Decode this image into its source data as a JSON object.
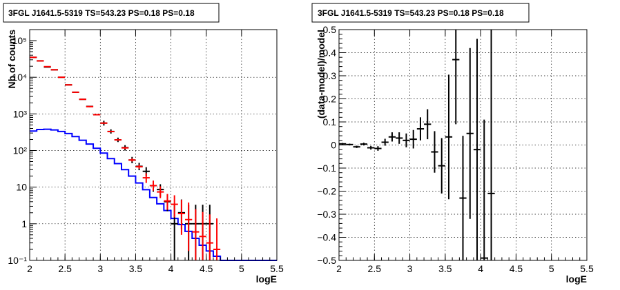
{
  "chart_data": [
    {
      "type": "step-histogram",
      "title": "3FGL J1641.5-5319 TS=543.23 PS=0.18 PS=0.18",
      "xlabel": "logE",
      "ylabel": "Nb of counts",
      "xlim": [
        2,
        5.5
      ],
      "ylim": [
        0.1,
        200000
      ],
      "yscale": "log",
      "grid": true,
      "x_ticks": [
        2,
        2.5,
        3,
        3.5,
        4,
        4.5,
        5,
        5.5
      ],
      "x_tick_labels": [
        "2",
        "2.5",
        "3",
        "3.5",
        "4",
        "4.5",
        "5",
        "5.5"
      ],
      "y_ticks": [
        0.1,
        1,
        10,
        100,
        1000,
        10000,
        100000
      ],
      "y_tick_labels": [
        "10⁻¹",
        "1",
        "10",
        "10²",
        "10³",
        "10⁴",
        "10⁵"
      ],
      "bin_width": 0.1,
      "colors": {
        "data": "#000000",
        "model": "#ff0000",
        "source": "#0000ff"
      },
      "series": [
        {
          "values": [
            {
              "x": 2.05,
              "y": 35000,
              "lo": 0,
              "hi": 0
            },
            {
              "x": 2.15,
              "y": 28000,
              "lo": 0,
              "hi": 0
            },
            {
              "x": 2.25,
              "y": 19000,
              "lo": 0,
              "hi": 0
            },
            {
              "x": 2.35,
              "y": 16000,
              "lo": 0,
              "hi": 0
            },
            {
              "x": 2.45,
              "y": 10000,
              "lo": 0,
              "hi": 0
            },
            {
              "x": 2.55,
              "y": 6200,
              "lo": 0,
              "hi": 0
            },
            {
              "x": 2.65,
              "y": 3900,
              "lo": 0,
              "hi": 0
            },
            {
              "x": 2.75,
              "y": 2500,
              "lo": 0,
              "hi": 0
            },
            {
              "x": 2.85,
              "y": 1600,
              "lo": 0,
              "hi": 0
            },
            {
              "x": 2.95,
              "y": 950,
              "lo": 0,
              "hi": 0
            },
            {
              "x": 3.05,
              "y": 560,
              "lo": 480,
              "hi": 650
            },
            {
              "x": 3.15,
              "y": 330,
              "lo": 290,
              "hi": 380
            },
            {
              "x": 3.25,
              "y": 195,
              "lo": 170,
              "hi": 225
            },
            {
              "x": 3.35,
              "y": 120,
              "lo": 100,
              "hi": 140
            },
            {
              "x": 3.45,
              "y": 55,
              "lo": 45,
              "hi": 67
            },
            {
              "x": 3.55,
              "y": 37,
              "lo": 29,
              "hi": 46
            },
            {
              "x": 3.65,
              "y": 27,
              "lo": 20,
              "hi": 35
            },
            {
              "x": 3.75,
              "y": 11,
              "lo": 7.5,
              "hi": 15
            },
            {
              "x": 3.85,
              "y": 8.6,
              "lo": 5.5,
              "hi": 12
            },
            {
              "x": 3.95,
              "y": 4,
              "lo": 2.2,
              "hi": 6.4
            },
            {
              "x": 4.05,
              "y": 1,
              "lo": 0.1,
              "hi": 3.3
            },
            {
              "x": 4.15,
              "y": 2,
              "lo": 0.7,
              "hi": 4.6
            },
            {
              "x": 4.25,
              "y": 1,
              "lo": 0.1,
              "hi": 3.3
            },
            {
              "x": 4.35,
              "y": 1,
              "lo": 0.1,
              "hi": 3.3
            },
            {
              "x": 4.45,
              "y": 1,
              "lo": 0.1,
              "hi": 3.3
            },
            {
              "x": 4.55,
              "y": 1,
              "lo": 0.1,
              "hi": 3.3
            }
          ]
        },
        {
          "values": [
            {
              "x": 2.05,
              "y": 35000,
              "lo": 34500,
              "hi": 35500
            },
            {
              "x": 2.15,
              "y": 28000,
              "lo": 27600,
              "hi": 28400
            },
            {
              "x": 2.25,
              "y": 19500,
              "lo": 19200,
              "hi": 19800
            },
            {
              "x": 2.35,
              "y": 16000,
              "lo": 15700,
              "hi": 16300
            },
            {
              "x": 2.45,
              "y": 10000,
              "lo": 9800,
              "hi": 10200
            },
            {
              "x": 2.55,
              "y": 6200,
              "lo": 6050,
              "hi": 6350
            },
            {
              "x": 2.65,
              "y": 3900,
              "lo": 3800,
              "hi": 4000
            },
            {
              "x": 2.75,
              "y": 2500,
              "lo": 2420,
              "hi": 2580
            },
            {
              "x": 2.85,
              "y": 1580,
              "lo": 1520,
              "hi": 1640
            },
            {
              "x": 2.95,
              "y": 950,
              "lo": 910,
              "hi": 990
            },
            {
              "x": 3.05,
              "y": 560,
              "lo": 535,
              "hi": 585
            },
            {
              "x": 3.15,
              "y": 330,
              "lo": 315,
              "hi": 345
            },
            {
              "x": 3.25,
              "y": 195,
              "lo": 186,
              "hi": 205
            },
            {
              "x": 3.35,
              "y": 118,
              "lo": 110,
              "hi": 126
            },
            {
              "x": 3.45,
              "y": 55,
              "lo": 50,
              "hi": 61
            },
            {
              "x": 3.55,
              "y": 36,
              "lo": 32,
              "hi": 41
            },
            {
              "x": 3.65,
              "y": 18,
              "lo": 13,
              "hi": 24
            },
            {
              "x": 3.75,
              "y": 11,
              "lo": 8,
              "hi": 15
            },
            {
              "x": 3.85,
              "y": 7.4,
              "lo": 5,
              "hi": 10.5
            },
            {
              "x": 3.95,
              "y": 4.2,
              "lo": 2.4,
              "hi": 6.5
            },
            {
              "x": 4.05,
              "y": 3.4,
              "lo": 1.5,
              "hi": 6
            },
            {
              "x": 4.15,
              "y": 1.9,
              "lo": 0.5,
              "hi": 4.5
            },
            {
              "x": 4.25,
              "y": 1.3,
              "lo": 0.18,
              "hi": 3.8
            },
            {
              "x": 4.35,
              "y": 0.6,
              "lo": 0.1,
              "hi": 2.5
            },
            {
              "x": 4.45,
              "y": 0.45,
              "lo": 0.1,
              "hi": 2.1
            },
            {
              "x": 4.55,
              "y": 0.3,
              "lo": 0.1,
              "hi": 1.8
            },
            {
              "x": 4.65,
              "y": 0.2,
              "lo": 0.1,
              "hi": 1.4
            }
          ]
        },
        {
          "edges": [
            2.0,
            2.1,
            2.2,
            2.3,
            2.4,
            2.5,
            2.6,
            2.7,
            2.8,
            2.9,
            3.0,
            3.1,
            3.2,
            3.3,
            3.4,
            3.5,
            3.6,
            3.7,
            3.8,
            3.9,
            4.0,
            4.1,
            4.2,
            4.3,
            4.4,
            4.5,
            4.6,
            4.7,
            4.8,
            4.9,
            5.0,
            5.1,
            5.2,
            5.3,
            5.4,
            5.5
          ],
          "values": [
            340,
            375,
            380,
            365,
            330,
            290,
            240,
            190,
            150,
            115,
            85,
            60,
            44,
            30,
            20,
            13,
            8.5,
            5.2,
            3.5,
            2.3,
            1.4,
            0.95,
            0.62,
            0.4,
            0.26,
            0.18,
            0.13,
            0.1,
            0.1,
            0.1,
            0.1,
            0.1,
            0.1,
            0.1,
            0.1
          ]
        }
      ]
    },
    {
      "type": "scatter-errorbar",
      "title": "3FGL J1641.5-5319 TS=543.23 PS=0.18 PS=0.18",
      "xlabel": "logE",
      "ylabel": "(data-model)/model",
      "xlim": [
        2,
        5.5
      ],
      "ylim": [
        -0.5,
        0.5
      ],
      "grid": true,
      "x_ticks": [
        2,
        2.5,
        3,
        3.5,
        4,
        4.5,
        5,
        5.5
      ],
      "x_tick_labels": [
        "2",
        "2.5",
        "3",
        "3.5",
        "4",
        "4.5",
        "5",
        "5.5"
      ],
      "y_ticks": [
        -0.5,
        -0.4,
        -0.3,
        -0.2,
        -0.1,
        0,
        0.1,
        0.2,
        0.3,
        0.4,
        0.5
      ],
      "y_tick_labels": [
        "−0.5",
        "−0.4",
        "−0.3",
        "−0.2",
        "−0.1",
        "0",
        "0.1",
        "0.2",
        "0.3",
        "0.4",
        "0.5"
      ],
      "bin_width": 0.1,
      "colors": {
        "points": "#000000"
      },
      "series": [
        {
          "values": [
            {
              "x": 2.05,
              "y": 0.005,
              "err": 0.004
            },
            {
              "x": 2.15,
              "y": 0.002,
              "err": 0.004
            },
            {
              "x": 2.25,
              "y": -0.008,
              "err": 0.005
            },
            {
              "x": 2.35,
              "y": 0.004,
              "err": 0.006
            },
            {
              "x": 2.45,
              "y": -0.012,
              "err": 0.008
            },
            {
              "x": 2.55,
              "y": -0.015,
              "err": 0.01
            },
            {
              "x": 2.65,
              "y": 0.012,
              "err": 0.015
            },
            {
              "x": 2.75,
              "y": 0.035,
              "err": 0.02
            },
            {
              "x": 2.85,
              "y": 0.03,
              "err": 0.025
            },
            {
              "x": 2.95,
              "y": 0.02,
              "err": 0.03
            },
            {
              "x": 3.05,
              "y": 0.025,
              "err": 0.04
            },
            {
              "x": 3.15,
              "y": 0.07,
              "err": 0.05
            },
            {
              "x": 3.25,
              "y": 0.09,
              "err": 0.065
            },
            {
              "x": 3.35,
              "y": -0.03,
              "err": 0.09
            },
            {
              "x": 3.45,
              "y": -0.09,
              "err": 0.12
            },
            {
              "x": 3.55,
              "y": 0.035,
              "err": 0.27
            },
            {
              "x": 3.65,
              "y": 0.37,
              "err": 0.28
            },
            {
              "x": 3.75,
              "y": -0.23,
              "err": 0.27
            },
            {
              "x": 3.85,
              "y": 0.05,
              "err": 0.37
            },
            {
              "x": 3.95,
              "y": -0.02,
              "err": 0.48
            },
            {
              "x": 4.05,
              "y": -0.49,
              "err": 0.6
            },
            {
              "x": 4.15,
              "y": -0.21,
              "err": 0.9
            }
          ]
        }
      ]
    }
  ]
}
